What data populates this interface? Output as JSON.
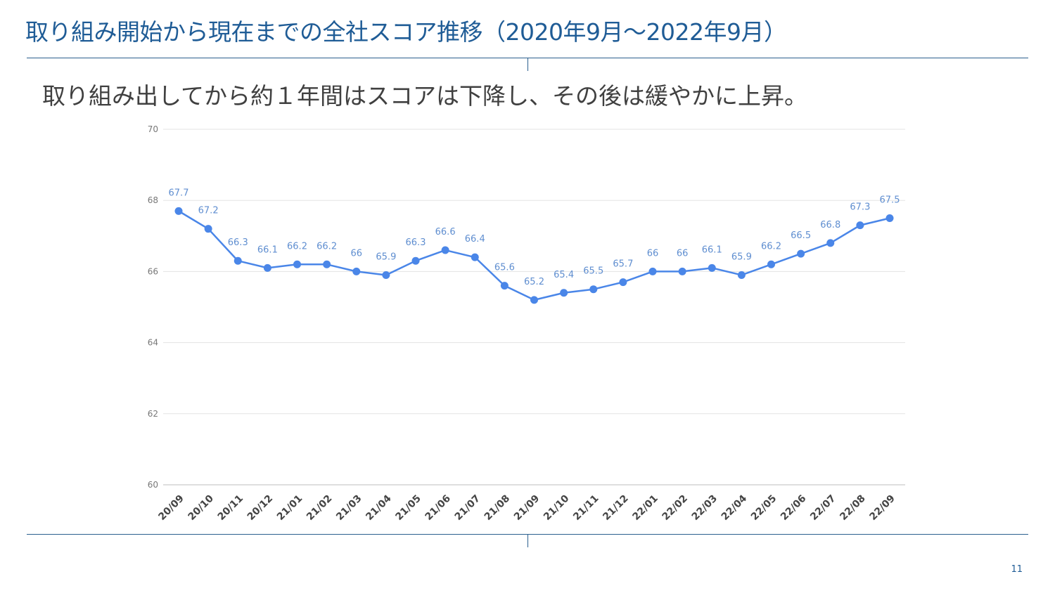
{
  "header": {
    "title": "取り組み開始から現在までの全社スコア推移（2020年9月〜2022年9月）"
  },
  "summary": {
    "text": "取り組み出してから約１年間はスコアは下降し、その後は緩やかに上昇。"
  },
  "chart_data": {
    "type": "line",
    "title": "",
    "xlabel": "",
    "ylabel": "",
    "ylim": [
      60,
      70
    ],
    "yticks": [
      "60",
      "62",
      "64",
      "66",
      "68",
      "70"
    ],
    "grid": true,
    "categories": [
      "20/09",
      "20/10",
      "20/11",
      "20/12",
      "21/01",
      "21/02",
      "21/03",
      "21/04",
      "21/05",
      "21/06",
      "21/07",
      "21/08",
      "21/09",
      "21/10",
      "21/11",
      "21/12",
      "22/01",
      "22/02",
      "22/03",
      "22/04",
      "22/05",
      "22/06",
      "22/07",
      "22/08",
      "22/09"
    ],
    "series": [
      {
        "values": [
          67.7,
          67.2,
          66.3,
          66.1,
          66.2,
          66.2,
          66,
          65.9,
          66.3,
          66.6,
          66.4,
          65.6,
          65.2,
          65.4,
          65.5,
          65.7,
          66,
          66,
          66.1,
          65.9,
          66.2,
          66.5,
          66.8,
          67.3,
          67.5
        ],
        "labels": [
          "67.7",
          "67.2",
          "66.3",
          "66.1",
          "66.2",
          "66.2",
          "66",
          "65.9",
          "66.3",
          "66.6",
          "66.4",
          "65.6",
          "65.2",
          "65.4",
          "65.5",
          "65.7",
          "66",
          "66",
          "66.1",
          "65.9",
          "66.2",
          "66.5",
          "66.8",
          "67.3",
          "67.5"
        ],
        "color": "#4a86e8"
      }
    ]
  },
  "footer": {
    "page_number": "11"
  }
}
